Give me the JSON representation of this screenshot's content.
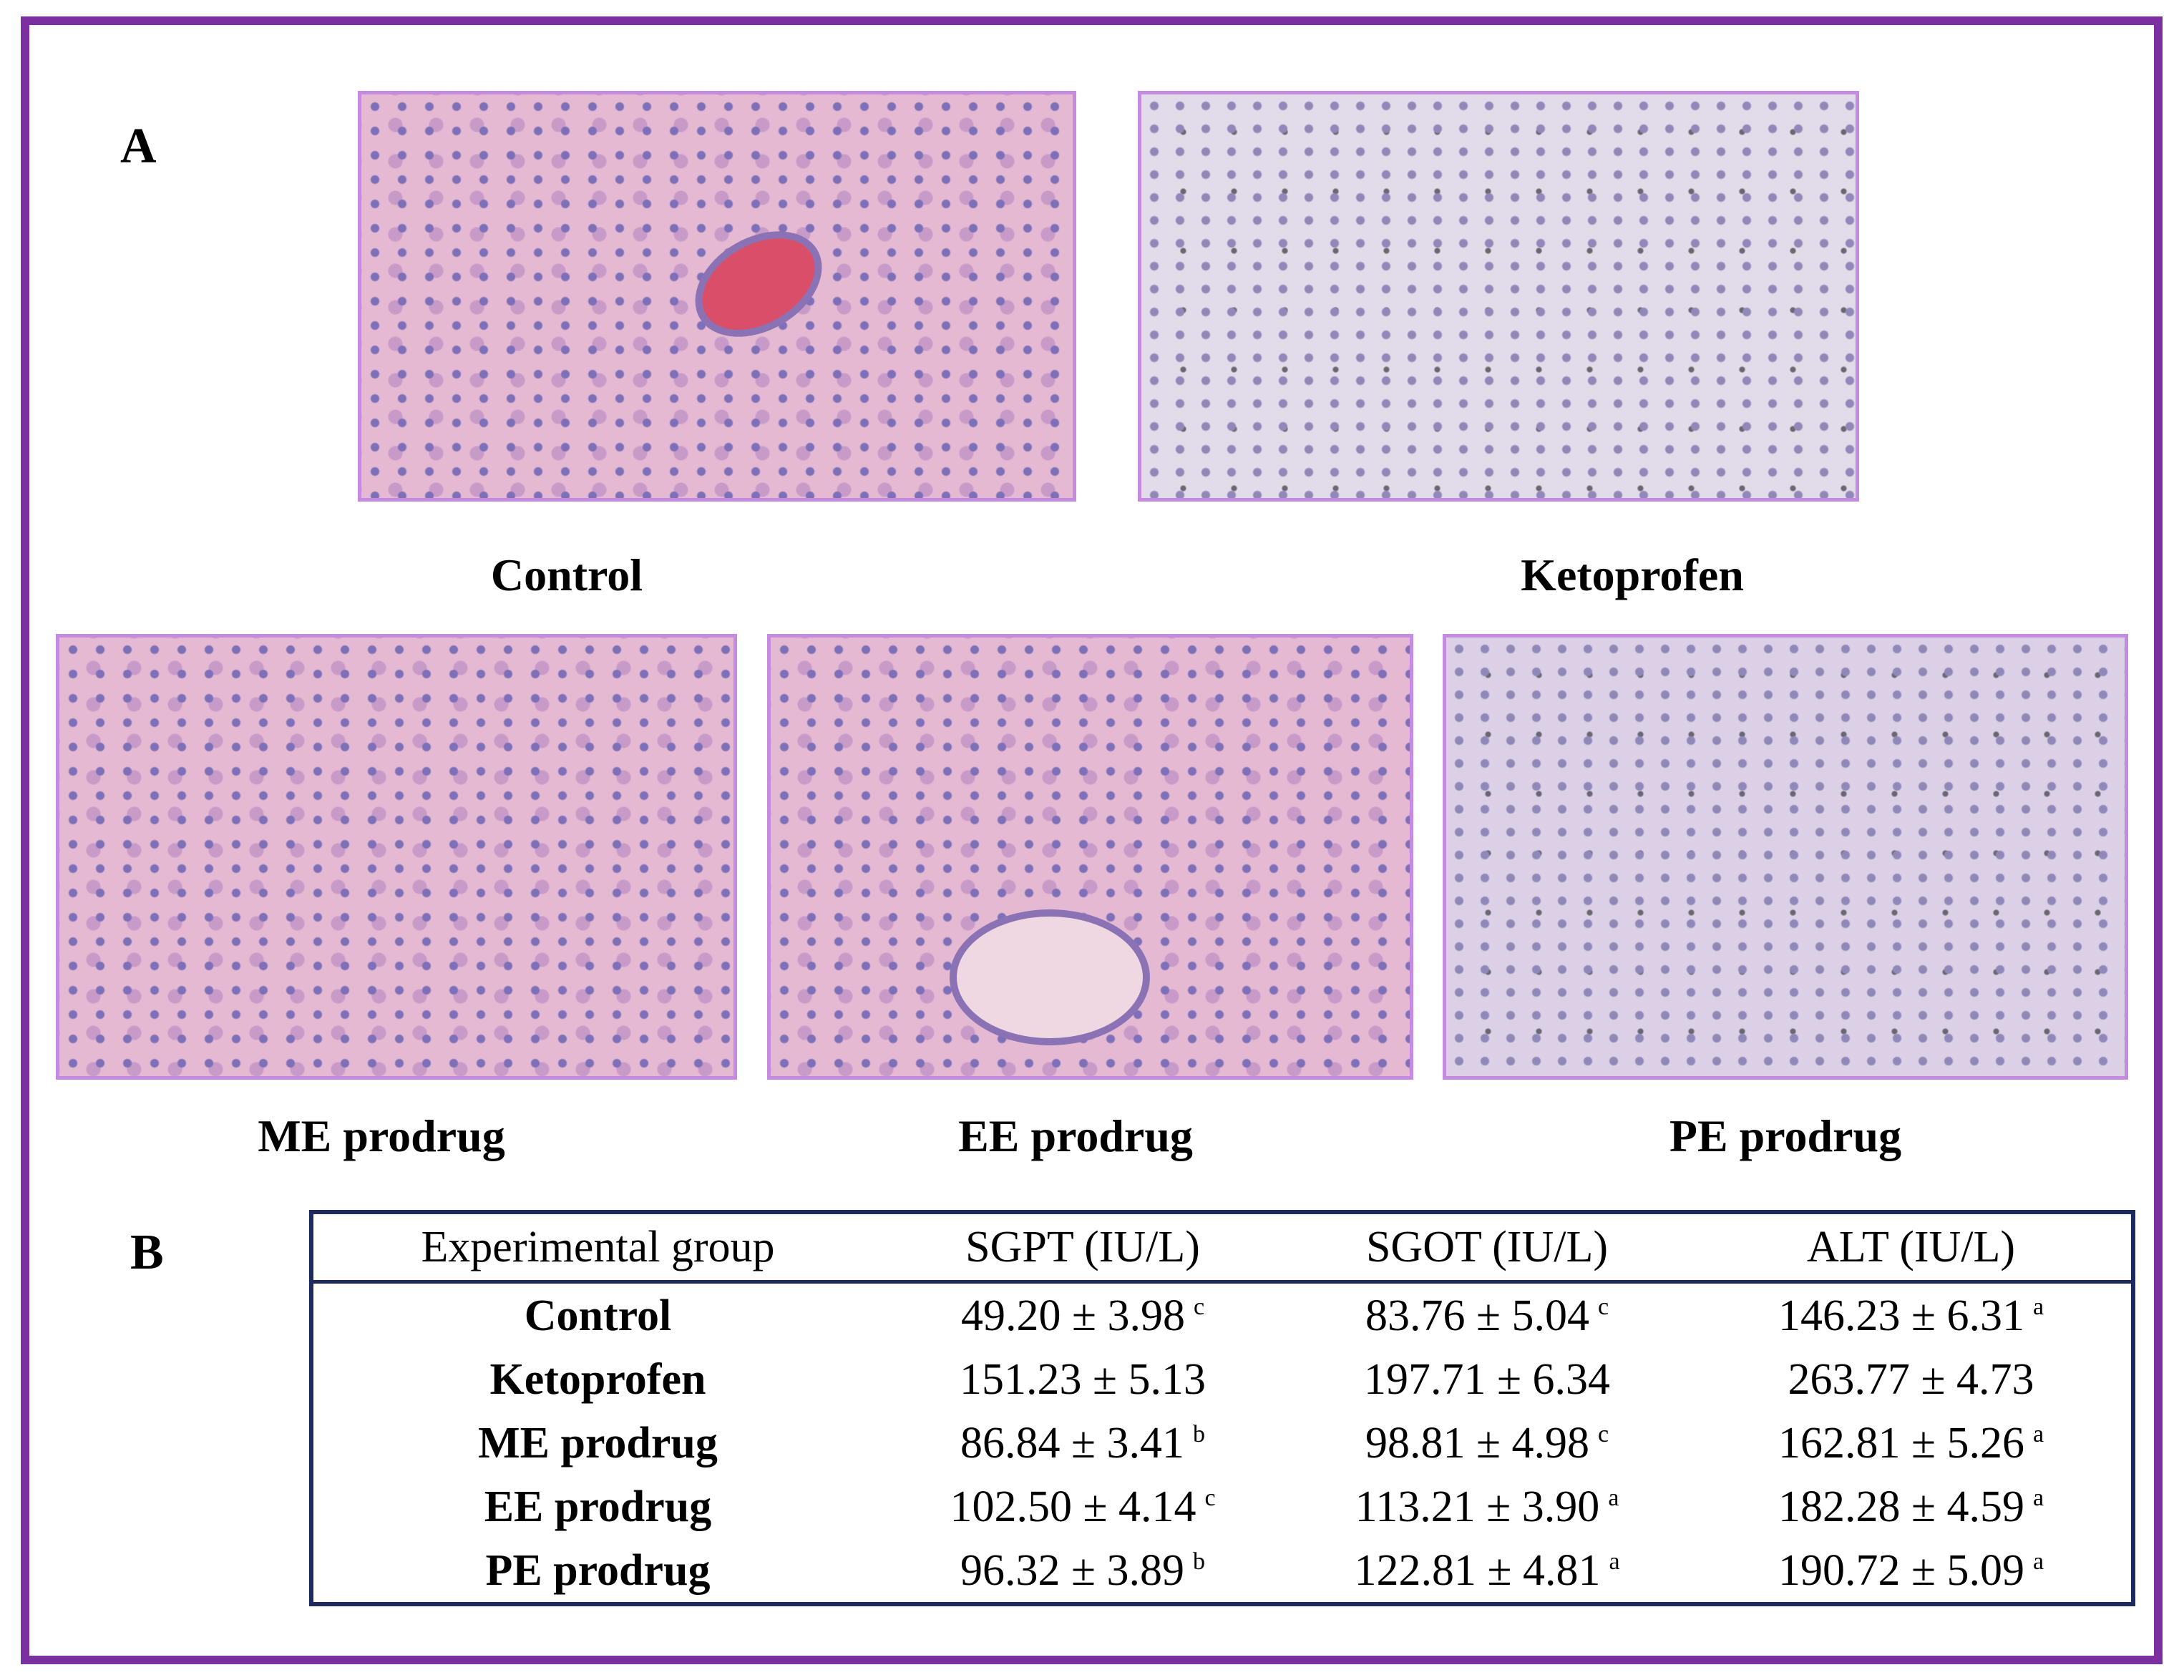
{
  "panel_a": {
    "label": "A",
    "images": [
      {
        "caption": "Control"
      },
      {
        "caption": "Ketoprofen"
      },
      {
        "caption": "ME prodrug"
      },
      {
        "caption": "EE prodrug"
      },
      {
        "caption": "PE prodrug"
      }
    ]
  },
  "panel_b": {
    "label": "B",
    "table": {
      "header": [
        "Experimental group",
        "SGPT (IU/L)",
        "SGOT (IU/L)",
        "ALT (IU/L)"
      ],
      "rows": [
        [
          "Control",
          {
            "text": "49.20 ± 3.98",
            "sup": "c"
          },
          {
            "text": "83.76 ± 5.04",
            "sup": "c"
          },
          {
            "text": "146.23 ± 6.31",
            "sup": "a"
          }
        ],
        [
          "Ketoprofen",
          {
            "text": "151.23 ± 5.13"
          },
          {
            "text": "197.71 ± 6.34"
          },
          {
            "text": "263.77 ± 4.73"
          }
        ],
        [
          "ME prodrug",
          {
            "text": "86.84 ± 3.41",
            "sup": "b"
          },
          {
            "text": "98.81 ± 4.98",
            "sup": "c"
          },
          {
            "text": "162.81 ± 5.26",
            "sup": "a"
          }
        ],
        [
          "EE prodrug",
          {
            "text": "102.50 ± 4.14",
            "sup": "c"
          },
          {
            "text": "113.21 ± 3.90",
            "sup": "a"
          },
          {
            "text": "182.28 ± 4.59",
            "sup": "a"
          }
        ],
        [
          "PE prodrug",
          {
            "text": "96.32 ± 3.89",
            "sup": "b"
          },
          {
            "text": "122.81 ± 4.81",
            "sup": "a"
          },
          {
            "text": "190.72 ± 5.09",
            "sup": "a"
          }
        ]
      ]
    }
  }
}
